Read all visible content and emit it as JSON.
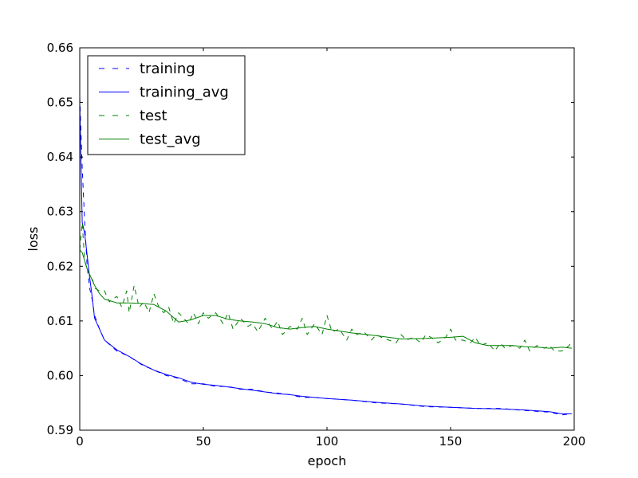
{
  "chart_data": {
    "type": "line",
    "title": "",
    "xlabel": "epoch",
    "ylabel": "loss",
    "xlim": [
      0,
      200
    ],
    "ylim": [
      0.59,
      0.66
    ],
    "xticks": [
      0,
      50,
      100,
      150,
      200
    ],
    "yticks": [
      0.59,
      0.6,
      0.61,
      0.62,
      0.63,
      0.64,
      0.65,
      0.66
    ],
    "xtick_labels": [
      "0",
      "50",
      "100",
      "150",
      "200"
    ],
    "ytick_labels": [
      "0.59",
      "0.60",
      "0.61",
      "0.62",
      "0.63",
      "0.64",
      "0.65",
      "0.66"
    ],
    "grid": false,
    "legend_position": "top-left",
    "colors": {
      "training": "#0000ff",
      "test": "#008000"
    },
    "legend": [
      {
        "label": "training",
        "series": "training",
        "style": "dashed"
      },
      {
        "label": "training_avg",
        "series": "training_avg",
        "style": "solid"
      },
      {
        "label": "test",
        "series": "test",
        "style": "dashed"
      },
      {
        "label": "test_avg",
        "series": "test_avg",
        "style": "solid"
      }
    ],
    "series": [
      {
        "name": "training",
        "color": "#0000ff",
        "style": "dashed",
        "x": [
          0,
          1,
          2,
          3,
          4,
          5,
          6,
          8,
          10,
          15,
          20,
          25,
          30,
          35,
          40,
          45,
          50,
          55,
          60,
          65,
          70,
          75,
          80,
          85,
          90,
          95,
          100,
          110,
          120,
          130,
          140,
          150,
          160,
          170,
          180,
          190,
          195,
          199
        ],
        "y": [
          0.651,
          0.638,
          0.628,
          0.62,
          0.616,
          0.614,
          0.611,
          0.6085,
          0.6065,
          0.6045,
          0.6035,
          0.602,
          0.601,
          0.6,
          0.5995,
          0.5985,
          0.5985,
          0.598,
          0.598,
          0.5975,
          0.5975,
          0.597,
          0.5968,
          0.5965,
          0.596,
          0.596,
          0.5958,
          0.5955,
          0.595,
          0.5948,
          0.5943,
          0.5942,
          0.594,
          0.594,
          0.5936,
          0.5933,
          0.5928,
          0.593
        ]
      },
      {
        "name": "training_avg",
        "color": "#0000ff",
        "style": "solid",
        "x": [
          0,
          1,
          2,
          3,
          4,
          5,
          6,
          8,
          10,
          15,
          20,
          25,
          30,
          35,
          40,
          45,
          50,
          55,
          60,
          65,
          70,
          75,
          80,
          85,
          90,
          95,
          100,
          110,
          120,
          130,
          140,
          150,
          160,
          170,
          180,
          190,
          195,
          199
        ],
        "y": [
          0.65,
          0.628,
          0.626,
          0.622,
          0.618,
          0.6145,
          0.6105,
          0.6085,
          0.6065,
          0.6047,
          0.6035,
          0.6021,
          0.601,
          0.6002,
          0.5996,
          0.5988,
          0.5984,
          0.5982,
          0.5979,
          0.5976,
          0.5973,
          0.597,
          0.5967,
          0.5965,
          0.5962,
          0.596,
          0.5958,
          0.5955,
          0.5951,
          0.5948,
          0.5944,
          0.5942,
          0.594,
          0.5939,
          0.5937,
          0.5934,
          0.593,
          0.593
        ]
      },
      {
        "name": "test",
        "color": "#008000",
        "style": "dashed",
        "x": [
          0,
          1,
          2,
          3,
          4,
          5,
          6,
          8,
          10,
          12,
          15,
          17,
          19,
          20,
          22,
          24,
          26,
          28,
          30,
          32,
          34,
          36,
          38,
          40,
          42,
          44,
          46,
          48,
          50,
          52,
          55,
          58,
          60,
          62,
          65,
          68,
          70,
          72,
          75,
          78,
          80,
          82,
          85,
          88,
          90,
          92,
          95,
          98,
          100,
          102,
          105,
          108,
          110,
          112,
          115,
          118,
          120,
          122,
          125,
          128,
          130,
          132,
          135,
          138,
          140,
          142,
          145,
          148,
          150,
          152,
          155,
          158,
          160,
          162,
          165,
          168,
          170,
          172,
          175,
          178,
          180,
          182,
          185,
          188,
          190,
          192,
          195,
          198,
          199
        ],
        "y": [
          0.623,
          0.628,
          0.621,
          0.6195,
          0.6185,
          0.618,
          0.616,
          0.6155,
          0.6155,
          0.6135,
          0.6145,
          0.6125,
          0.6155,
          0.6115,
          0.6165,
          0.6125,
          0.6135,
          0.6115,
          0.615,
          0.6125,
          0.6115,
          0.6125,
          0.6095,
          0.6115,
          0.6105,
          0.6095,
          0.6115,
          0.6095,
          0.6115,
          0.6105,
          0.6115,
          0.6095,
          0.6115,
          0.6085,
          0.6105,
          0.609,
          0.6095,
          0.608,
          0.6105,
          0.6085,
          0.61,
          0.6075,
          0.609,
          0.6085,
          0.6105,
          0.6075,
          0.6095,
          0.6075,
          0.611,
          0.608,
          0.6085,
          0.6065,
          0.6085,
          0.6075,
          0.608,
          0.6065,
          0.6075,
          0.607,
          0.6065,
          0.606,
          0.6075,
          0.6065,
          0.607,
          0.606,
          0.6075,
          0.607,
          0.606,
          0.607,
          0.6085,
          0.6065,
          0.6065,
          0.606,
          0.607,
          0.6055,
          0.606,
          0.6045,
          0.606,
          0.605,
          0.6055,
          0.605,
          0.6065,
          0.6045,
          0.6055,
          0.605,
          0.6055,
          0.6045,
          0.6045,
          0.6055,
          0.6065
        ]
      },
      {
        "name": "test_avg",
        "color": "#008000",
        "style": "solid",
        "x": [
          0,
          1,
          2,
          3,
          4,
          5,
          6,
          8,
          10,
          15,
          20,
          25,
          30,
          35,
          40,
          45,
          50,
          55,
          60,
          65,
          70,
          75,
          80,
          85,
          90,
          95,
          100,
          110,
          120,
          130,
          140,
          150,
          155,
          160,
          165,
          170,
          175,
          180,
          185,
          190,
          195,
          199
        ],
        "y": [
          0.623,
          0.6225,
          0.621,
          0.6195,
          0.6185,
          0.6175,
          0.6165,
          0.615,
          0.614,
          0.6133,
          0.6133,
          0.6132,
          0.613,
          0.6118,
          0.6098,
          0.6102,
          0.611,
          0.611,
          0.6103,
          0.61,
          0.6098,
          0.6095,
          0.6088,
          0.6085,
          0.6088,
          0.609,
          0.6085,
          0.6078,
          0.6073,
          0.6067,
          0.6068,
          0.607,
          0.6072,
          0.606,
          0.6055,
          0.6055,
          0.6055,
          0.6053,
          0.6052,
          0.605,
          0.6052,
          0.605
        ]
      }
    ]
  }
}
